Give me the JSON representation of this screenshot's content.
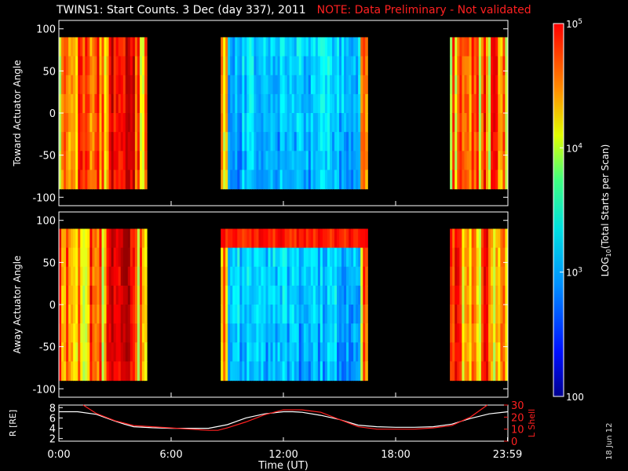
{
  "title": {
    "main": "TWINS1: Start Counts.  3 Dec (day 337), 2011",
    "note": "NOTE: Data Preliminary - Not validated"
  },
  "date_stamp": "18 Jun 12",
  "colors": {
    "note": "#ff2020",
    "r_line": "#ffffff",
    "lshell_line": "#ff2020"
  },
  "chart_data": [
    {
      "type": "heatmap",
      "ylabel": "Toward Actuator Angle",
      "ylim": [
        -110,
        110
      ],
      "yticks": [
        100,
        50,
        0,
        -50,
        -100
      ],
      "xlim": [
        0,
        24
      ],
      "angle_range": [
        -90,
        90
      ],
      "segments": [
        {
          "t_start": 0.0,
          "t_end": 4.7,
          "level": "high"
        },
        {
          "t_start": 8.65,
          "t_end": 16.5,
          "level": "low"
        },
        {
          "t_start": 20.9,
          "t_end": 23.98,
          "level": "high"
        }
      ]
    },
    {
      "type": "heatmap",
      "ylabel": "Away Actuator Angle",
      "ylim": [
        -110,
        110
      ],
      "yticks": [
        100,
        50,
        0,
        -50,
        -100
      ],
      "xlim": [
        0,
        24
      ],
      "angle_range": [
        -90,
        90
      ],
      "segments": [
        {
          "t_start": 0.0,
          "t_end": 4.7,
          "level": "high"
        },
        {
          "t_start": 8.65,
          "t_end": 16.5,
          "level": "low"
        },
        {
          "t_start": 20.9,
          "t_end": 23.98,
          "level": "high"
        }
      ]
    },
    {
      "type": "line",
      "xlabel": "Time (UT)",
      "xticks": [
        "0:00",
        "6:00",
        "12:00",
        "18:00",
        "23:59"
      ],
      "xtick_values": [
        0,
        6,
        12,
        18,
        23.98
      ],
      "xlim": [
        0,
        24
      ],
      "y_left": {
        "label": "R [RE]",
        "ylim": [
          1.5,
          8.5
        ],
        "ticks": [
          8,
          6,
          4,
          2
        ]
      },
      "y_right": {
        "label": "L Shell",
        "ylim": [
          0,
          30
        ],
        "ticks": [
          30,
          20,
          10,
          0
        ]
      },
      "series": [
        {
          "axis": "left",
          "x": [
            0,
            1,
            2,
            3,
            3.5,
            4,
            5,
            6,
            7,
            8,
            9,
            10,
            11,
            12,
            12.5,
            13,
            14,
            15,
            16,
            17,
            18,
            19,
            20,
            21,
            22,
            23,
            24
          ],
          "values": [
            7.2,
            7.2,
            6.7,
            5.4,
            4.8,
            4.3,
            4.1,
            4.0,
            4.0,
            4.0,
            4.7,
            6.0,
            6.8,
            7.2,
            7.2,
            7.1,
            6.5,
            5.7,
            4.6,
            4.3,
            4.2,
            4.2,
            4.3,
            4.8,
            5.9,
            6.8,
            7.2
          ]
        },
        {
          "axis": "right",
          "x": [
            1.3,
            2,
            3,
            4,
            5,
            6,
            7,
            8,
            8.5,
            9,
            10,
            11,
            12,
            12.5,
            13,
            14,
            15,
            16,
            17,
            18,
            19,
            20,
            21,
            22,
            22.9
          ],
          "values": [
            30,
            23,
            17,
            13,
            12,
            11,
            10,
            9,
            9,
            11,
            16,
            22,
            26,
            26,
            26,
            24,
            18,
            12,
            10,
            10,
            10,
            11,
            13,
            20,
            30
          ]
        }
      ]
    }
  ],
  "colorbar": {
    "label_text": "LOG",
    "label_sub": "10",
    "label_rest": "(Total Starts per Scan)",
    "ticks": [
      {
        "base": "10",
        "exp": "5",
        "value": 100000
      },
      {
        "base": "10",
        "exp": "4",
        "value": 10000
      },
      {
        "base": "10",
        "exp": "3",
        "value": 1000
      },
      {
        "base": "100",
        "exp": "",
        "value": 100
      }
    ],
    "range": [
      100,
      100000
    ]
  }
}
